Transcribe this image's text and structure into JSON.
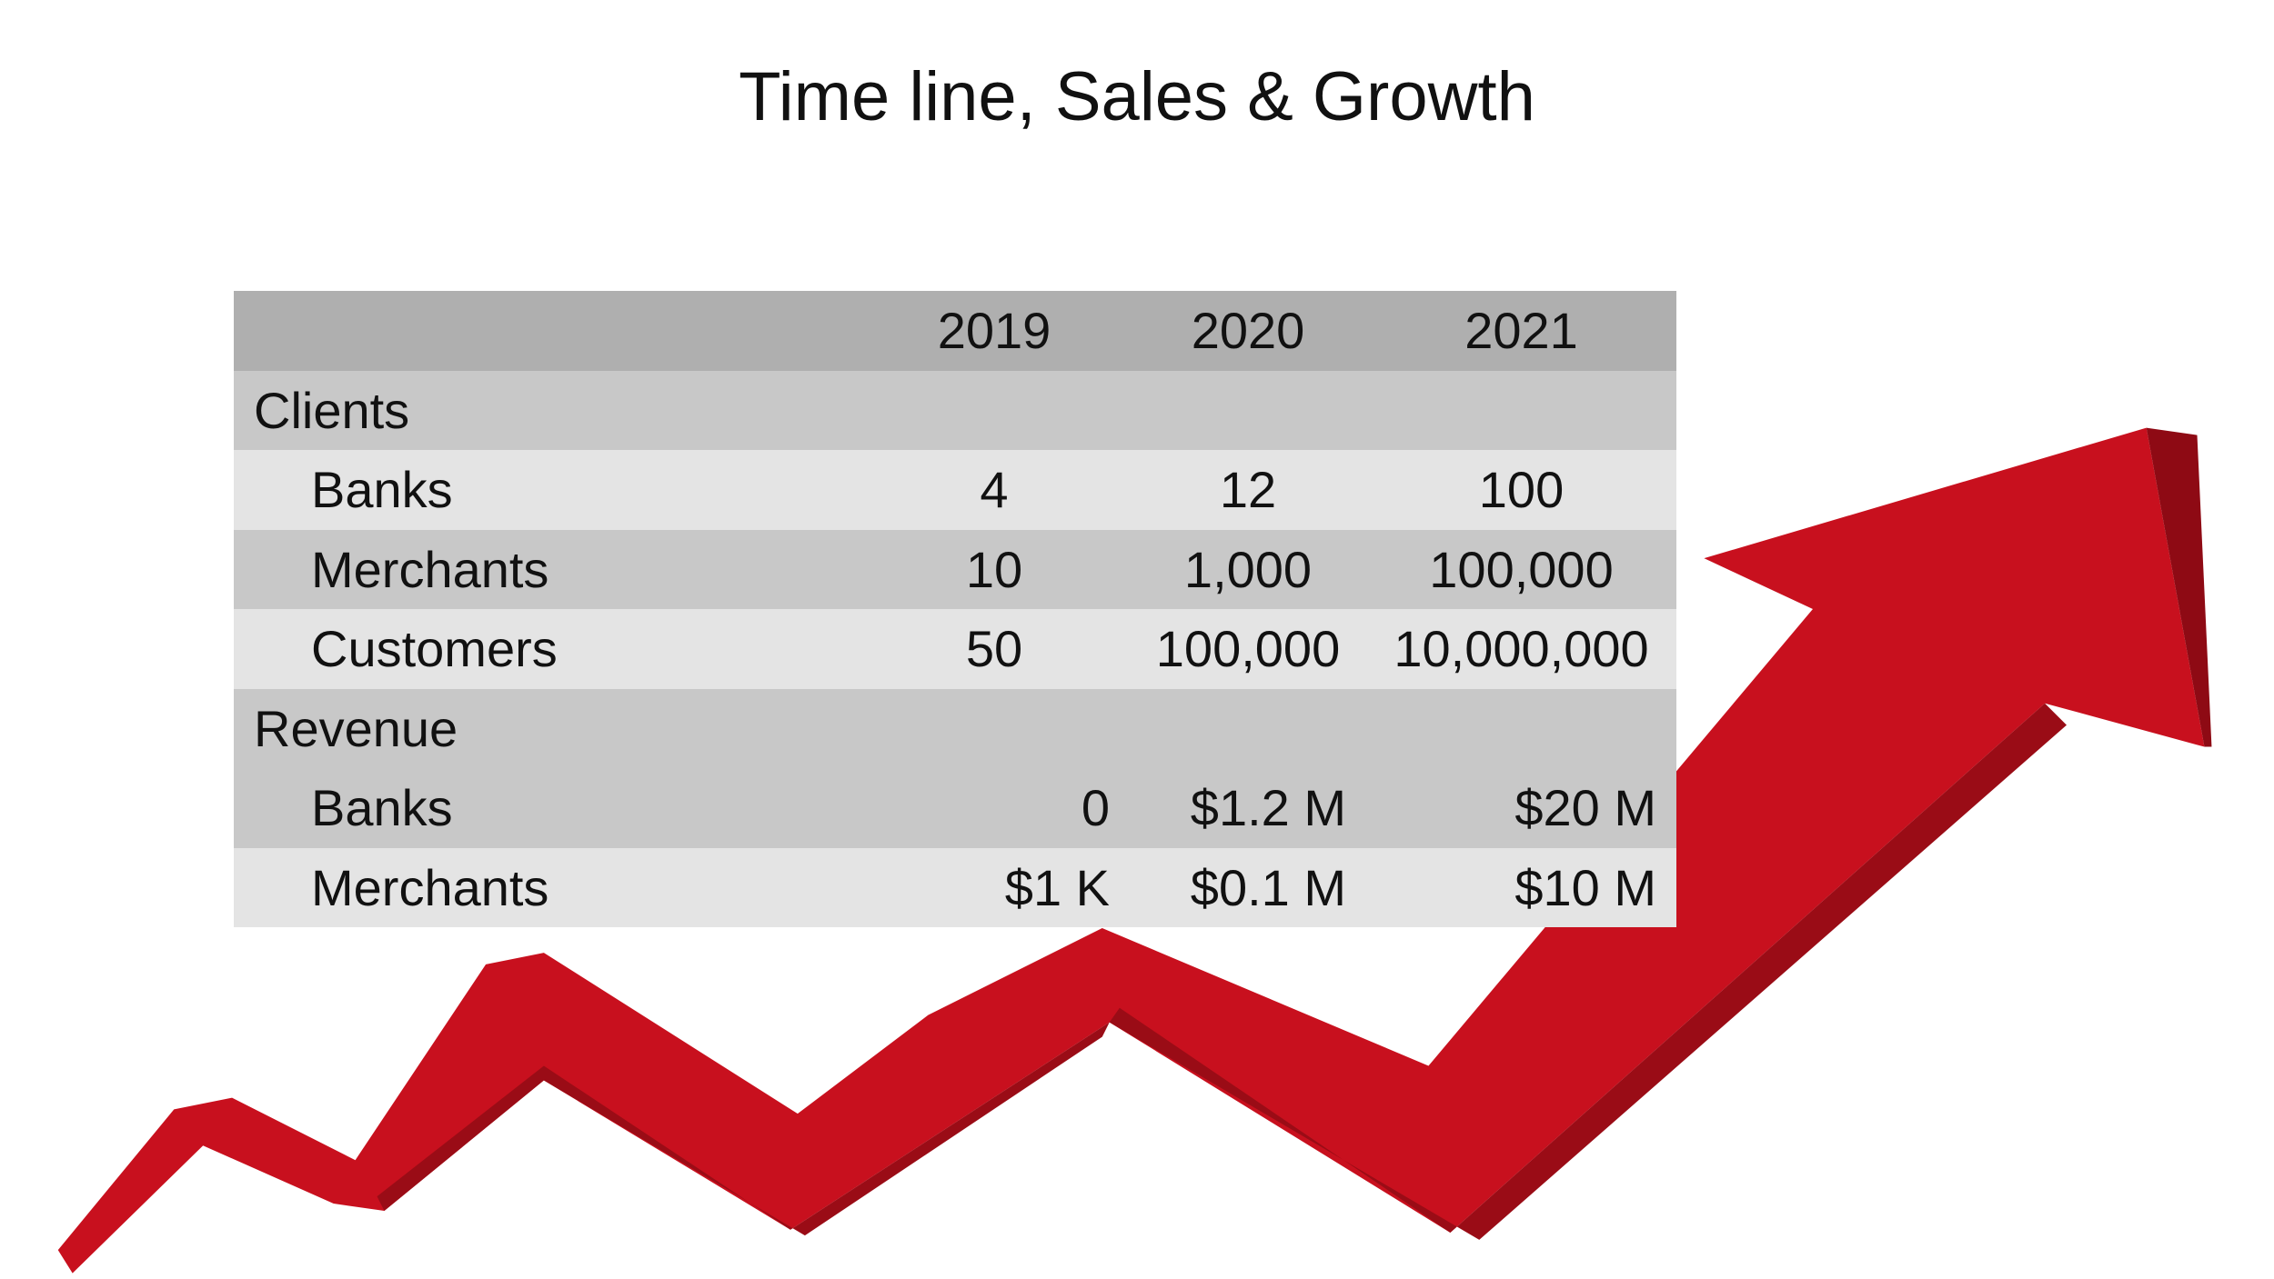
{
  "title": "Time line, Sales & Growth",
  "table": {
    "columns": [
      "2019",
      "2020",
      "2021"
    ],
    "sections": [
      {
        "label": "Clients",
        "rows": [
          {
            "label": "Banks",
            "cells": [
              "4",
              "12",
              "100"
            ]
          },
          {
            "label": "Merchants",
            "cells": [
              "10",
              "1,000",
              "100,000"
            ]
          },
          {
            "label": "Customers",
            "cells": [
              "50",
              "100,000",
              "10,000,000"
            ]
          }
        ]
      },
      {
        "label": "Revenue",
        "rows": [
          {
            "label": "Banks",
            "cells": [
              "0",
              "$1.2 M",
              "$20 M"
            ]
          },
          {
            "label": "Merchants",
            "cells": [
              "$1 K",
              "$0.1 M",
              "$10 M"
            ]
          }
        ]
      }
    ]
  }
}
